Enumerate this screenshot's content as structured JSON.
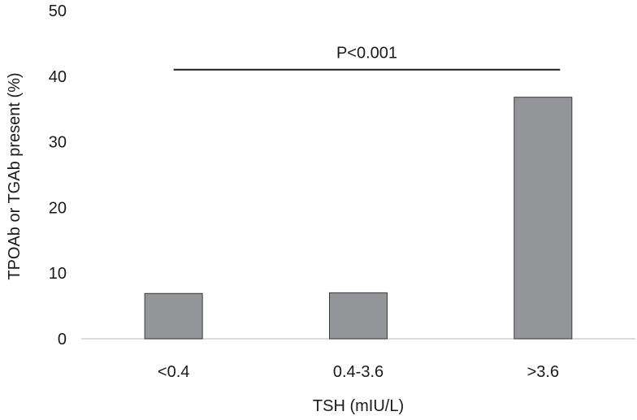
{
  "chart_data": {
    "type": "bar",
    "categories": [
      "<0.4",
      "0.4-3.6",
      ">3.6"
    ],
    "values": [
      6.9,
      7.0,
      36.8
    ],
    "xlabel": "TSH (mIU/L)",
    "ylabel": "TPOAb or TGAb present (%)",
    "ylim": [
      0,
      50
    ],
    "yticks": [
      0,
      10,
      20,
      30,
      40,
      50
    ],
    "grid": false,
    "legend": "none",
    "bar_color": "#939598",
    "bar_edge_color": "#3a3a3a",
    "annotation": {
      "text": "P<0.001",
      "from_category": 0,
      "to_category": 2,
      "y": 41
    }
  }
}
